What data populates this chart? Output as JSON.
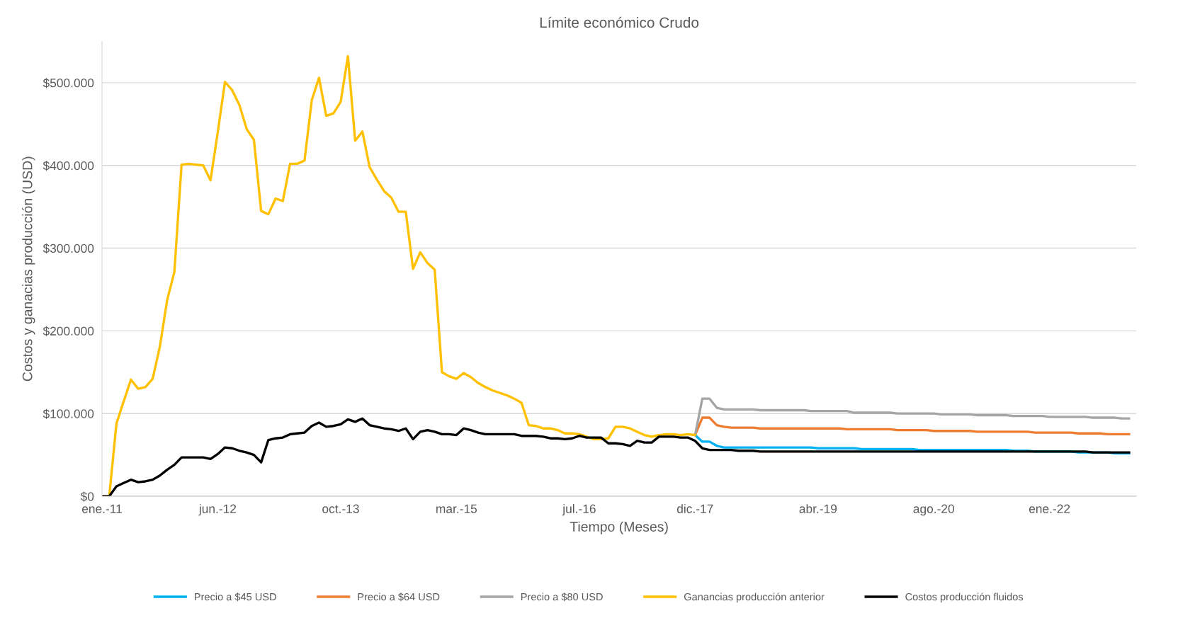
{
  "chart_data": {
    "type": "line",
    "title": "Límite económico Crudo",
    "xlabel": "Tiempo (Meses)",
    "ylabel": "Costos y ganacias producción (USD)",
    "categories": [
      "ene.-11",
      null,
      null,
      null,
      null,
      null,
      null,
      null,
      null,
      null,
      null,
      null,
      null,
      null,
      null,
      null,
      "jun.-12",
      null,
      null,
      null,
      null,
      null,
      null,
      null,
      null,
      null,
      null,
      null,
      null,
      null,
      null,
      null,
      null,
      "oct.-13",
      null,
      null,
      null,
      null,
      null,
      null,
      null,
      null,
      null,
      null,
      null,
      null,
      null,
      null,
      null,
      "mar.-15",
      null,
      null,
      null,
      null,
      null,
      null,
      null,
      null,
      null,
      null,
      null,
      null,
      null,
      null,
      null,
      null,
      "jul.-16",
      null,
      null,
      null,
      null,
      null,
      null,
      null,
      null,
      null,
      null,
      null,
      null,
      null,
      null,
      null,
      "dic.-17",
      null,
      null,
      null,
      null,
      null,
      null,
      null,
      null,
      null,
      null,
      null,
      null,
      null,
      null,
      null,
      null,
      "abr.-19",
      null,
      null,
      null,
      null,
      null,
      null,
      null,
      null,
      null,
      null,
      null,
      null,
      null,
      null,
      null,
      "ago.-20",
      null,
      null,
      null,
      null,
      null,
      null,
      null,
      null,
      null,
      null,
      null,
      null,
      null,
      null,
      null,
      "ene.-22",
      null,
      null,
      null,
      null,
      null,
      null,
      null,
      null,
      null,
      null,
      null
    ],
    "ylim": [
      0,
      550000
    ],
    "yticks": [
      {
        "value": 0,
        "label": "$0"
      },
      {
        "value": 100000,
        "label": "$100.000"
      },
      {
        "value": 200000,
        "label": "$200.000"
      },
      {
        "value": 300000,
        "label": "$300.000"
      },
      {
        "value": 400000,
        "label": "$400.000"
      },
      {
        "value": 500000,
        "label": "$500.000"
      }
    ],
    "grid": "y",
    "legend": "bottom",
    "marker": "none",
    "line_style": "solid",
    "series": [
      {
        "name": "Precio a $45 USD",
        "color": "#00b0f0",
        "values": [
          null,
          null,
          null,
          null,
          null,
          null,
          null,
          null,
          null,
          null,
          null,
          null,
          null,
          null,
          null,
          null,
          null,
          null,
          null,
          null,
          null,
          null,
          null,
          null,
          null,
          null,
          null,
          null,
          null,
          null,
          null,
          null,
          null,
          null,
          null,
          null,
          null,
          null,
          null,
          null,
          null,
          null,
          null,
          null,
          null,
          null,
          null,
          null,
          null,
          null,
          null,
          null,
          null,
          null,
          null,
          null,
          null,
          null,
          null,
          null,
          null,
          null,
          null,
          null,
          null,
          null,
          null,
          null,
          null,
          null,
          null,
          null,
          null,
          null,
          null,
          null,
          null,
          null,
          null,
          null,
          null,
          null,
          74000,
          66000,
          66000,
          61000,
          59000,
          59000,
          59000,
          59000,
          59000,
          59000,
          59000,
          59000,
          59000,
          59000,
          59000,
          59000,
          59000,
          58000,
          58000,
          58000,
          58000,
          58000,
          58000,
          57000,
          57000,
          57000,
          57000,
          57000,
          57000,
          57000,
          57000,
          56000,
          56000,
          56000,
          56000,
          56000,
          56000,
          56000,
          56000,
          56000,
          56000,
          56000,
          56000,
          56000,
          55000,
          55000,
          55000,
          54000,
          54000,
          54000,
          54000,
          54000,
          54000,
          53000,
          53000,
          53000,
          53000,
          53000,
          52000,
          52000,
          52000
        ]
      },
      {
        "name": "Precio a $64 USD",
        "color": "#ed7d31",
        "values": [
          null,
          null,
          null,
          null,
          null,
          null,
          null,
          null,
          null,
          null,
          null,
          null,
          null,
          null,
          null,
          null,
          null,
          null,
          null,
          null,
          null,
          null,
          null,
          null,
          null,
          null,
          null,
          null,
          null,
          null,
          null,
          null,
          null,
          null,
          null,
          null,
          null,
          null,
          null,
          null,
          null,
          null,
          null,
          null,
          null,
          null,
          null,
          null,
          null,
          null,
          null,
          null,
          null,
          null,
          null,
          null,
          null,
          null,
          null,
          null,
          null,
          null,
          null,
          null,
          null,
          null,
          null,
          null,
          null,
          null,
          null,
          null,
          null,
          null,
          null,
          null,
          null,
          null,
          null,
          null,
          null,
          null,
          74000,
          95000,
          95000,
          86000,
          84000,
          83000,
          83000,
          83000,
          83000,
          82000,
          82000,
          82000,
          82000,
          82000,
          82000,
          82000,
          82000,
          82000,
          82000,
          82000,
          82000,
          81000,
          81000,
          81000,
          81000,
          81000,
          81000,
          81000,
          80000,
          80000,
          80000,
          80000,
          80000,
          79000,
          79000,
          79000,
          79000,
          79000,
          79000,
          78000,
          78000,
          78000,
          78000,
          78000,
          78000,
          78000,
          78000,
          77000,
          77000,
          77000,
          77000,
          77000,
          77000,
          76000,
          76000,
          76000,
          76000,
          75000,
          75000,
          75000,
          75000
        ]
      },
      {
        "name": "Precio a $80 USD",
        "color": "#a5a5a5",
        "values": [
          null,
          null,
          null,
          null,
          null,
          null,
          null,
          null,
          null,
          null,
          null,
          null,
          null,
          null,
          null,
          null,
          null,
          null,
          null,
          null,
          null,
          null,
          null,
          null,
          null,
          null,
          null,
          null,
          null,
          null,
          null,
          null,
          null,
          null,
          null,
          null,
          null,
          null,
          null,
          null,
          null,
          null,
          null,
          null,
          null,
          null,
          null,
          null,
          null,
          null,
          null,
          null,
          null,
          null,
          null,
          null,
          null,
          null,
          null,
          null,
          null,
          null,
          null,
          null,
          null,
          null,
          null,
          null,
          null,
          null,
          null,
          null,
          null,
          null,
          null,
          null,
          null,
          null,
          null,
          null,
          null,
          null,
          74000,
          118000,
          118000,
          107000,
          105000,
          105000,
          105000,
          105000,
          105000,
          104000,
          104000,
          104000,
          104000,
          104000,
          104000,
          104000,
          103000,
          103000,
          103000,
          103000,
          103000,
          103000,
          101000,
          101000,
          101000,
          101000,
          101000,
          101000,
          100000,
          100000,
          100000,
          100000,
          100000,
          100000,
          99000,
          99000,
          99000,
          99000,
          99000,
          98000,
          98000,
          98000,
          98000,
          98000,
          97000,
          97000,
          97000,
          97000,
          97000,
          96000,
          96000,
          96000,
          96000,
          96000,
          96000,
          95000,
          95000,
          95000,
          95000,
          94000,
          94000
        ]
      },
      {
        "name": "Ganancias producción anterior",
        "color": "#ffc000",
        "values": [
          0,
          0,
          88000,
          115000,
          141000,
          130000,
          132000,
          142000,
          181000,
          237000,
          271000,
          401000,
          402000,
          401000,
          400000,
          382000,
          440000,
          501000,
          491000,
          473000,
          444000,
          431000,
          345000,
          341000,
          360000,
          357000,
          402000,
          402000,
          406000,
          479000,
          506000,
          460000,
          463000,
          477000,
          532000,
          430000,
          441000,
          398000,
          383000,
          369000,
          361000,
          344000,
          344000,
          275000,
          295000,
          282000,
          274000,
          150000,
          145000,
          142000,
          149000,
          144000,
          137000,
          132000,
          128000,
          125000,
          122000,
          118000,
          113000,
          86000,
          85000,
          82000,
          82000,
          80000,
          76000,
          76000,
          75000,
          72000,
          69000,
          69000,
          70000,
          84000,
          84000,
          82000,
          78000,
          74000,
          72000,
          74000,
          75000,
          75000,
          74000,
          75000,
          74000,
          null,
          null,
          null,
          null,
          null,
          null,
          null,
          null,
          null,
          null,
          null,
          null,
          null,
          null,
          null,
          null,
          null,
          null,
          null,
          null,
          null,
          null,
          null,
          null,
          null,
          null,
          null,
          null,
          null,
          null,
          null,
          null,
          null,
          null,
          null,
          null,
          null,
          null,
          null,
          null,
          null,
          null,
          null,
          null,
          null,
          null,
          null,
          null,
          null,
          null,
          null,
          null,
          null,
          null,
          null,
          null,
          null,
          null,
          null,
          null
        ]
      },
      {
        "name": "Costos producción fluidos",
        "color": "#000000",
        "values": [
          0,
          0,
          12000,
          16000,
          20000,
          17000,
          18000,
          20000,
          25000,
          32000,
          38000,
          47000,
          47000,
          47000,
          47000,
          45000,
          51000,
          59000,
          58000,
          55000,
          53000,
          50000,
          41000,
          68000,
          70000,
          71000,
          75000,
          76000,
          77000,
          85000,
          89000,
          84000,
          85000,
          87000,
          93000,
          90000,
          94000,
          86000,
          84000,
          82000,
          81000,
          79000,
          82000,
          69000,
          78000,
          80000,
          78000,
          75000,
          75000,
          74000,
          82000,
          80000,
          77000,
          75000,
          75000,
          75000,
          75000,
          75000,
          73000,
          73000,
          73000,
          72000,
          70000,
          70000,
          69000,
          70000,
          73000,
          71000,
          71000,
          71000,
          64000,
          64000,
          63000,
          61000,
          67000,
          65000,
          65000,
          72000,
          72000,
          72000,
          71000,
          71000,
          67000,
          58000,
          56000,
          56000,
          56000,
          56000,
          55000,
          55000,
          55000,
          54000,
          54000,
          54000,
          54000,
          54000,
          54000,
          54000,
          54000,
          54000,
          54000,
          54000,
          54000,
          54000,
          54000,
          54000,
          54000,
          54000,
          54000,
          54000,
          54000,
          54000,
          54000,
          54000,
          54000,
          54000,
          54000,
          54000,
          54000,
          54000,
          54000,
          54000,
          54000,
          54000,
          54000,
          54000,
          54000,
          54000,
          54000,
          54000,
          54000,
          54000,
          54000,
          54000,
          54000,
          54000,
          54000,
          53000,
          53000,
          53000,
          53000,
          53000,
          53000
        ]
      }
    ]
  }
}
